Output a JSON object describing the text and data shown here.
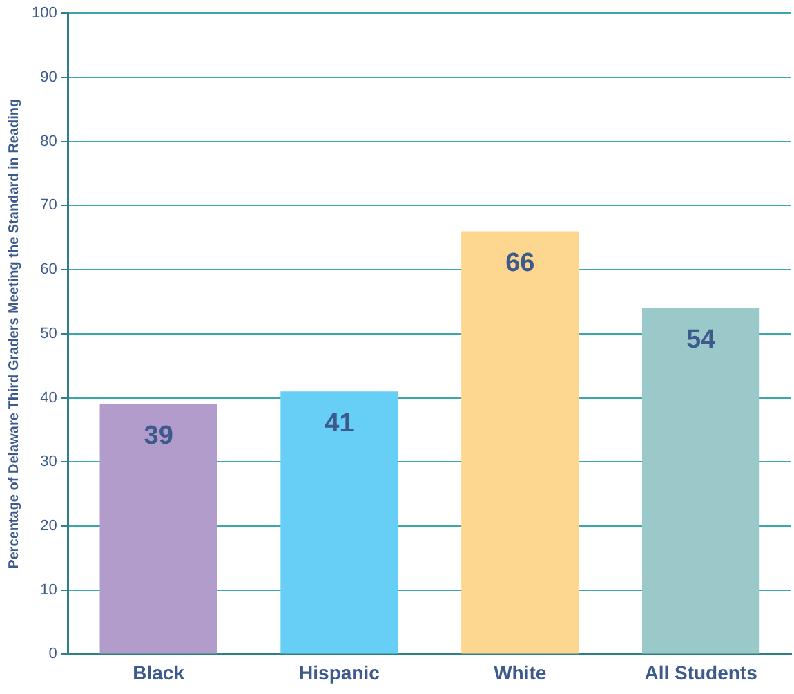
{
  "chart_data": {
    "type": "bar",
    "ylabel": "Percentage of Delaware Third Graders Meeting the Standard in Reading",
    "categories": [
      "Black",
      "Hispanic",
      "White",
      "All Students"
    ],
    "values": [
      39,
      41,
      66,
      54
    ],
    "colors": [
      "#b19ccb",
      "#67cef5",
      "#fdd78f",
      "#9bc8c8"
    ],
    "ylim": [
      0,
      100
    ],
    "yticks": [
      0,
      10,
      20,
      30,
      40,
      50,
      60,
      70,
      80,
      90,
      100
    ],
    "grid": "y",
    "legend": false,
    "data_labels": true
  }
}
